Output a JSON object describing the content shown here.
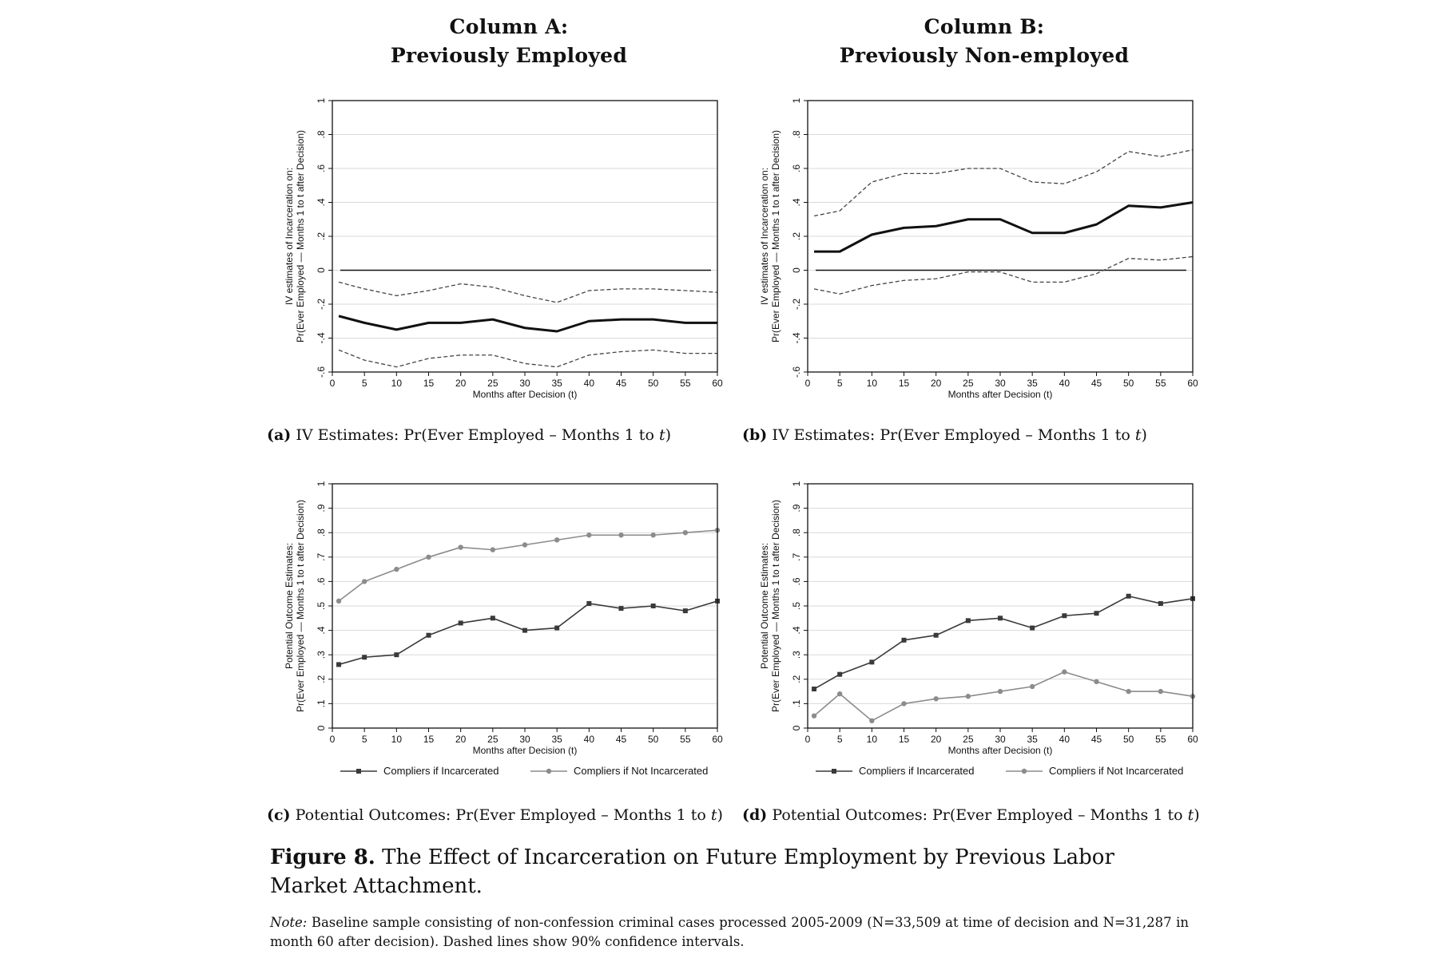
{
  "column_titles": {
    "a": {
      "line1": "Column A:",
      "line2": "Previously Employed"
    },
    "b": {
      "line1": "Column B:",
      "line2": "Previously Non-employed"
    }
  },
  "captions": {
    "a": {
      "label": "(a)",
      "text": "IV Estimates: Pr(Ever Employed – Months 1 to ",
      "var": "t",
      "close": ")"
    },
    "b": {
      "label": "(b)",
      "text": "IV Estimates: Pr(Ever Employed – Months 1 to ",
      "var": "t",
      "close": ")"
    },
    "c": {
      "label": "(c)",
      "text": "Potential Outcomes: Pr(Ever Employed – Months 1 to ",
      "var": "t",
      "close": ")"
    },
    "d": {
      "label": "(d)",
      "text": "Potential Outcomes: Pr(Ever Employed – Months 1 to ",
      "var": "t",
      "close": ")"
    }
  },
  "figure_caption": {
    "label": "Figure 8.",
    "text": "The Effect of Incarceration on Future Employment by Previous Labor Market Attachment."
  },
  "note": {
    "label": "Note:",
    "text": "Baseline sample consisting of non-confession criminal cases processed 2005-2009 (N=33,509 at time of decision and N=31,287 in month 60 after decision). Dashed lines show 90% confidence intervals."
  },
  "colors": {
    "estimate": "#111111",
    "ci": "#444444",
    "incarcerated": "#3a3a3a",
    "not_incarcerated": "#8c8c8c",
    "grid": "#d9d9d9"
  },
  "chart_data": [
    {
      "id": "a",
      "type": "line",
      "xlabel": "Months after Decision (t)",
      "ylabel_lines": [
        "IV estimates of Incarceration on:",
        "Pr(Ever Employed — Months 1 to t after Decision)"
      ],
      "xlim": [
        0,
        60
      ],
      "ylim": [
        -0.6,
        1
      ],
      "xticks": [
        0,
        5,
        10,
        15,
        20,
        25,
        30,
        35,
        40,
        45,
        50,
        55,
        60
      ],
      "xtick_labels": [
        "0",
        "5",
        "10",
        "15",
        "20",
        "25",
        "30",
        "35",
        "40",
        "45",
        "50",
        "55",
        "60"
      ],
      "yticks": [
        -0.6,
        -0.4,
        -0.2,
        0,
        0.2,
        0.4,
        0.6,
        0.8,
        1
      ],
      "ytick_labels": [
        "-.6",
        "-.4",
        "-.2",
        "0",
        ".2",
        ".4",
        ".6",
        ".8",
        "1"
      ],
      "grid": true,
      "zero_line": true,
      "x": [
        1,
        5,
        10,
        15,
        20,
        25,
        30,
        35,
        40,
        45,
        50,
        55,
        60
      ],
      "series": [
        {
          "role": "estimate",
          "values": [
            -0.27,
            -0.31,
            -0.35,
            -0.31,
            -0.31,
            -0.29,
            -0.34,
            -0.36,
            -0.3,
            -0.29,
            -0.29,
            -0.31,
            -0.31
          ]
        },
        {
          "role": "ci_upper",
          "values": [
            -0.07,
            -0.11,
            -0.15,
            -0.12,
            -0.08,
            -0.1,
            -0.15,
            -0.19,
            -0.12,
            -0.11,
            -0.11,
            -0.12,
            -0.13
          ]
        },
        {
          "role": "ci_lower",
          "values": [
            -0.47,
            -0.53,
            -0.57,
            -0.52,
            -0.5,
            -0.5,
            -0.55,
            -0.57,
            -0.5,
            -0.48,
            -0.47,
            -0.49,
            -0.49
          ]
        }
      ]
    },
    {
      "id": "b",
      "type": "line",
      "xlabel": "Months after Decision (t)",
      "ylabel_lines": [
        "IV estimates of Incarceration on:",
        "Pr(Ever Employed — Months 1 to t after Decision)"
      ],
      "xlim": [
        0,
        60
      ],
      "ylim": [
        -0.6,
        1
      ],
      "xticks": [
        0,
        5,
        10,
        15,
        20,
        25,
        30,
        35,
        40,
        45,
        50,
        55,
        60
      ],
      "xtick_labels": [
        "0",
        "5",
        "10",
        "15",
        "20",
        "25",
        "30",
        "35",
        "40",
        "45",
        "50",
        "55",
        "60"
      ],
      "yticks": [
        -0.6,
        -0.4,
        -0.2,
        0,
        0.2,
        0.4,
        0.6,
        0.8,
        1
      ],
      "ytick_labels": [
        "-.6",
        "-.4",
        "-.2",
        "0",
        ".2",
        ".4",
        ".6",
        ".8",
        "1"
      ],
      "grid": true,
      "zero_line": true,
      "x": [
        1,
        5,
        10,
        15,
        20,
        25,
        30,
        35,
        40,
        45,
        50,
        55,
        60
      ],
      "series": [
        {
          "role": "estimate",
          "values": [
            0.11,
            0.11,
            0.21,
            0.25,
            0.26,
            0.3,
            0.3,
            0.22,
            0.22,
            0.27,
            0.38,
            0.37,
            0.4
          ]
        },
        {
          "role": "ci_upper",
          "values": [
            0.32,
            0.35,
            0.52,
            0.57,
            0.57,
            0.6,
            0.6,
            0.52,
            0.51,
            0.58,
            0.7,
            0.67,
            0.71
          ]
        },
        {
          "role": "ci_lower",
          "values": [
            -0.11,
            -0.14,
            -0.09,
            -0.06,
            -0.05,
            -0.01,
            -0.01,
            -0.07,
            -0.07,
            -0.02,
            0.07,
            0.06,
            0.08
          ]
        }
      ]
    },
    {
      "id": "c",
      "type": "line",
      "xlabel": "Months after Decision (t)",
      "ylabel_lines": [
        "Potential Outcome Estimates:",
        "Pr(Ever Employed — Months 1 to t after Decision)"
      ],
      "xlim": [
        0,
        60
      ],
      "ylim": [
        0,
        1
      ],
      "xticks": [
        0,
        5,
        10,
        15,
        20,
        25,
        30,
        35,
        40,
        45,
        50,
        55,
        60
      ],
      "xtick_labels": [
        "0",
        "5",
        "10",
        "15",
        "20",
        "25",
        "30",
        "35",
        "40",
        "45",
        "50",
        "55",
        "60"
      ],
      "yticks": [
        0,
        0.1,
        0.2,
        0.3,
        0.4,
        0.5,
        0.6,
        0.7,
        0.8,
        0.9,
        1
      ],
      "ytick_labels": [
        "0",
        ".1",
        ".2",
        ".3",
        ".4",
        ".5",
        ".6",
        ".7",
        ".8",
        ".9",
        "1"
      ],
      "grid": true,
      "zero_line": false,
      "x": [
        1,
        5,
        10,
        15,
        20,
        25,
        30,
        35,
        40,
        45,
        50,
        55,
        60
      ],
      "series": [
        {
          "role": "incarcerated",
          "name": "Compliers if Incarcerated",
          "values": [
            0.26,
            0.29,
            0.3,
            0.38,
            0.43,
            0.45,
            0.4,
            0.41,
            0.51,
            0.49,
            0.5,
            0.48,
            0.52
          ]
        },
        {
          "role": "not_incarcerated",
          "name": "Compliers if Not Incarcerated",
          "values": [
            0.52,
            0.6,
            0.65,
            0.7,
            0.74,
            0.73,
            0.75,
            0.77,
            0.79,
            0.79,
            0.79,
            0.8,
            0.81
          ]
        }
      ]
    },
    {
      "id": "d",
      "type": "line",
      "xlabel": "Months after Decision (t)",
      "ylabel_lines": [
        "Potential Outcome Estimates:",
        "Pr(Ever Employed — Months 1 to t after Decision)"
      ],
      "xlim": [
        0,
        60
      ],
      "ylim": [
        0,
        1
      ],
      "xticks": [
        0,
        5,
        10,
        15,
        20,
        25,
        30,
        35,
        40,
        45,
        50,
        55,
        60
      ],
      "xtick_labels": [
        "0",
        "5",
        "10",
        "15",
        "20",
        "25",
        "30",
        "35",
        "40",
        "45",
        "50",
        "55",
        "60"
      ],
      "yticks": [
        0,
        0.1,
        0.2,
        0.3,
        0.4,
        0.5,
        0.6,
        0.7,
        0.8,
        0.9,
        1
      ],
      "ytick_labels": [
        "0",
        ".1",
        ".2",
        ".3",
        ".4",
        ".5",
        ".6",
        ".7",
        ".8",
        ".9",
        "1"
      ],
      "grid": true,
      "zero_line": false,
      "x": [
        1,
        5,
        10,
        15,
        20,
        25,
        30,
        35,
        40,
        45,
        50,
        55,
        60
      ],
      "series": [
        {
          "role": "incarcerated",
          "name": "Compliers if Incarcerated",
          "values": [
            0.16,
            0.22,
            0.27,
            0.36,
            0.38,
            0.44,
            0.45,
            0.41,
            0.46,
            0.47,
            0.54,
            0.51,
            0.53
          ]
        },
        {
          "role": "not_incarcerated",
          "name": "Compliers if Not Incarcerated",
          "values": [
            0.05,
            0.14,
            0.03,
            0.1,
            0.12,
            0.13,
            0.15,
            0.17,
            0.23,
            0.19,
            0.15,
            0.15,
            0.13
          ]
        }
      ]
    }
  ]
}
